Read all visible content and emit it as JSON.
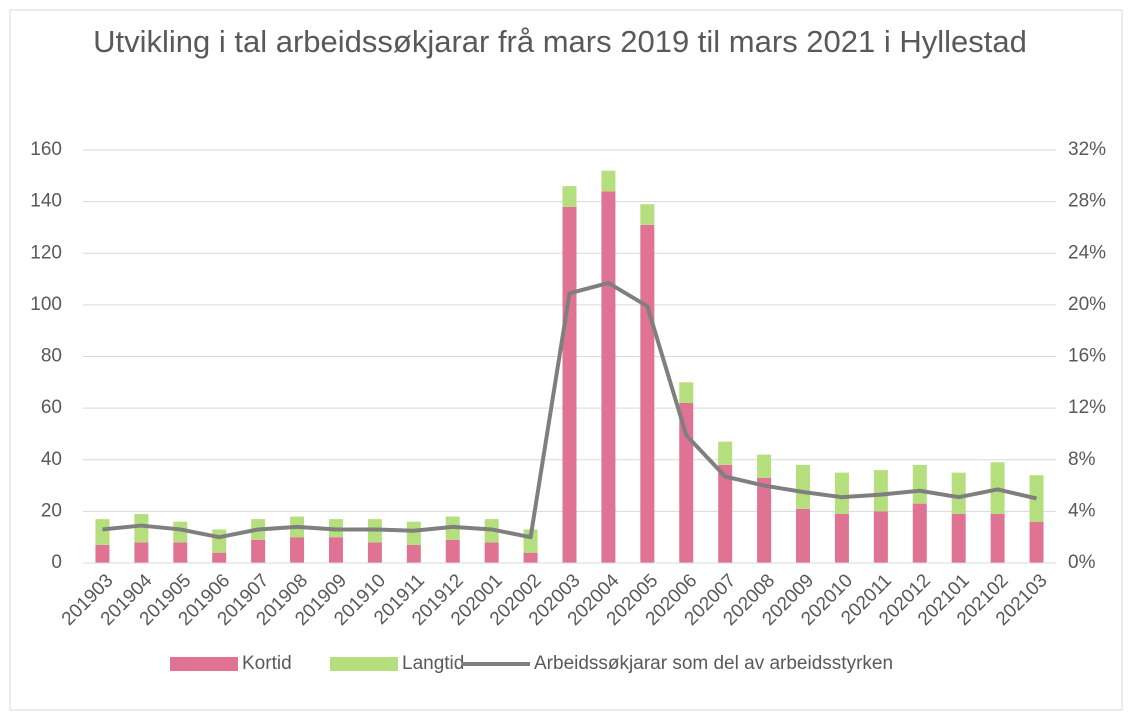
{
  "chart_data": {
    "type": "bar",
    "title": "Utvikling i tal arbeidssøkjarar frå mars 2019 til mars 2021 i Hyllestad",
    "stacked": true,
    "categories": [
      "201903",
      "201904",
      "201905",
      "201906",
      "201907",
      "201908",
      "201909",
      "201910",
      "201911",
      "201912",
      "202001",
      "202002",
      "202003",
      "202004",
      "202005",
      "202006",
      "202007",
      "202008",
      "202009",
      "202010",
      "202011",
      "202012",
      "202101",
      "202102",
      "202103"
    ],
    "series": [
      {
        "name": "Kortid",
        "color": "#e07393",
        "type": "bar",
        "values": [
          7,
          8,
          8,
          4,
          9,
          10,
          10,
          8,
          7,
          9,
          8,
          4,
          138,
          144,
          131,
          62,
          38,
          33,
          21,
          19,
          20,
          23,
          19,
          19,
          16
        ]
      },
      {
        "name": "Langtid",
        "color": "#b4df7c",
        "type": "bar",
        "values": [
          10,
          11,
          8,
          9,
          8,
          8,
          7,
          9,
          9,
          9,
          9,
          9,
          8,
          8,
          8,
          8,
          9,
          9,
          17,
          16,
          16,
          15,
          16,
          20,
          18
        ]
      },
      {
        "name": "Arbeidssøkjarar som del av arbeidsstyrken",
        "color": "#7f7f7f",
        "type": "line",
        "axis": "y2",
        "values": [
          2.6,
          2.9,
          2.6,
          2.0,
          2.6,
          2.8,
          2.6,
          2.6,
          2.5,
          2.8,
          2.6,
          2.0,
          20.9,
          21.7,
          19.9,
          9.9,
          6.7,
          6.0,
          5.5,
          5.1,
          5.3,
          5.6,
          5.1,
          5.7,
          5.0
        ]
      }
    ],
    "ylim": [
      0,
      160
    ],
    "yticks": [
      0,
      20,
      40,
      60,
      80,
      100,
      120,
      140,
      160
    ],
    "y2lim": [
      0,
      32
    ],
    "y2ticks": [
      {
        "value": 0,
        "label": "0%"
      },
      {
        "value": 4,
        "label": "4%"
      },
      {
        "value": 8,
        "label": "8%"
      },
      {
        "value": 12,
        "label": "12%"
      },
      {
        "value": 16,
        "label": "16%"
      },
      {
        "value": 20,
        "label": "20%"
      },
      {
        "value": 24,
        "label": "24%"
      },
      {
        "value": 28,
        "label": "28%"
      },
      {
        "value": 32,
        "label": "32%"
      }
    ],
    "grid": true,
    "legend": "bottom"
  }
}
